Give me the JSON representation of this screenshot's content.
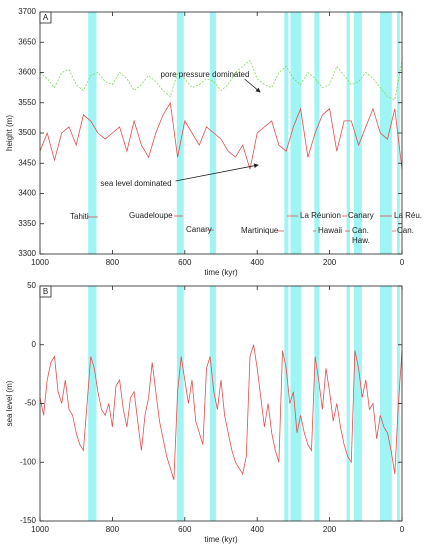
{
  "chart_data": [
    {
      "type": "line",
      "panel": "A",
      "xlabel": "time (kyr)",
      "ylabel": "height (m)",
      "xlim": [
        1000,
        0
      ],
      "xticks": [
        1000,
        800,
        600,
        400,
        200,
        0
      ],
      "ylim": [
        3300,
        3700
      ],
      "yticks": [
        3300,
        3350,
        3400,
        3450,
        3500,
        3550,
        3600,
        3650,
        3700
      ],
      "bands": [
        [
          867,
          844
        ],
        [
          622,
          603
        ],
        [
          531,
          514
        ],
        [
          325,
          314
        ],
        [
          308,
          278
        ],
        [
          242,
          228
        ],
        [
          153,
          144
        ],
        [
          133,
          111
        ],
        [
          61,
          28
        ],
        [
          14,
          6
        ]
      ],
      "band_color": "#7ff0f0",
      "annotations": [
        "pore pressure dominated",
        "sea level dominated"
      ],
      "site_labels": [
        "Tahiti",
        "Guadeloupe",
        "Canary",
        "Martinique",
        "La Réunion",
        "Hawaii",
        "Canary",
        "Can.",
        "Haw.",
        "La Réu.",
        "Can."
      ],
      "x": [
        1000,
        980,
        960,
        940,
        920,
        900,
        880,
        860,
        840,
        820,
        800,
        780,
        760,
        740,
        720,
        700,
        680,
        660,
        640,
        620,
        600,
        580,
        560,
        540,
        520,
        500,
        480,
        460,
        440,
        420,
        400,
        380,
        360,
        340,
        320,
        300,
        280,
        260,
        240,
        220,
        200,
        180,
        160,
        140,
        120,
        100,
        80,
        60,
        40,
        20,
        0
      ],
      "series": [
        {
          "color": "#7ed957",
          "dashed": true,
          "values": [
            3600,
            3590,
            3575,
            3600,
            3605,
            3580,
            3570,
            3595,
            3600,
            3585,
            3580,
            3600,
            3590,
            3570,
            3580,
            3595,
            3585,
            3570,
            3560,
            3600,
            3590,
            3575,
            3580,
            3590,
            3585,
            3570,
            3580,
            3600,
            3610,
            3620,
            3590,
            3580,
            3575,
            3600,
            3610,
            3590,
            3580,
            3600,
            3590,
            3575,
            3580,
            3610,
            3595,
            3580,
            3585,
            3600,
            3590,
            3575,
            3560,
            3555,
            3620
          ]
        },
        {
          "color": "#e05050",
          "dashed": false,
          "values": [
            3470,
            3500,
            3455,
            3500,
            3510,
            3480,
            3530,
            3520,
            3500,
            3490,
            3500,
            3510,
            3470,
            3520,
            3480,
            3460,
            3500,
            3530,
            3550,
            3460,
            3520,
            3500,
            3480,
            3510,
            3500,
            3490,
            3470,
            3460,
            3480,
            3440,
            3500,
            3510,
            3520,
            3480,
            3470,
            3510,
            3540,
            3460,
            3500,
            3530,
            3540,
            3470,
            3520,
            3520,
            3480,
            3510,
            3540,
            3500,
            3490,
            3540,
            3440
          ]
        }
      ]
    },
    {
      "type": "line",
      "panel": "B",
      "xlabel": "time (kyr)",
      "ylabel": "sea level (m)",
      "xlim": [
        1000,
        0
      ],
      "xticks": [
        1000,
        800,
        600,
        400,
        200,
        0
      ],
      "ylim": [
        -150,
        50
      ],
      "yticks": [
        -150,
        -100,
        -50,
        0,
        50
      ],
      "bands": [
        [
          867,
          844
        ],
        [
          622,
          603
        ],
        [
          531,
          514
        ],
        [
          325,
          314
        ],
        [
          308,
          278
        ],
        [
          242,
          228
        ],
        [
          153,
          144
        ],
        [
          133,
          111
        ],
        [
          61,
          28
        ],
        [
          14,
          6
        ]
      ],
      "band_color": "#7ff0f0",
      "x": [
        1000,
        990,
        980,
        970,
        960,
        950,
        940,
        930,
        920,
        910,
        900,
        890,
        880,
        870,
        860,
        850,
        840,
        830,
        820,
        810,
        800,
        790,
        780,
        770,
        760,
        750,
        740,
        730,
        720,
        710,
        700,
        690,
        680,
        670,
        660,
        650,
        640,
        630,
        620,
        610,
        600,
        590,
        580,
        570,
        560,
        550,
        540,
        530,
        520,
        510,
        500,
        490,
        480,
        470,
        460,
        450,
        440,
        430,
        420,
        410,
        400,
        390,
        380,
        370,
        360,
        350,
        340,
        330,
        320,
        310,
        300,
        290,
        280,
        270,
        260,
        250,
        240,
        230,
        220,
        210,
        200,
        190,
        180,
        170,
        160,
        150,
        140,
        130,
        120,
        110,
        100,
        90,
        80,
        70,
        60,
        50,
        40,
        30,
        20,
        10,
        0
      ],
      "series": [
        {
          "color": "#e05050",
          "dashed": false,
          "values": [
            -45,
            -60,
            -30,
            -15,
            -10,
            -40,
            -50,
            -30,
            -55,
            -60,
            -75,
            -85,
            -90,
            -50,
            -10,
            -20,
            -40,
            -55,
            -60,
            -50,
            -70,
            -35,
            -30,
            -55,
            -70,
            -45,
            -40,
            -65,
            -90,
            -60,
            -45,
            -15,
            -40,
            -65,
            -80,
            -95,
            -105,
            -115,
            -40,
            -10,
            -30,
            -50,
            -30,
            -65,
            -75,
            -85,
            -20,
            -10,
            -40,
            -55,
            -30,
            -60,
            -75,
            -90,
            -100,
            -105,
            -110,
            -95,
            -10,
            0,
            -20,
            -45,
            -70,
            -50,
            -75,
            -90,
            -100,
            -5,
            -20,
            -50,
            -40,
            -75,
            -60,
            -75,
            -85,
            -90,
            -10,
            -30,
            -55,
            -20,
            -40,
            -65,
            -50,
            -70,
            -85,
            -95,
            -100,
            -5,
            -20,
            -45,
            -30,
            -55,
            -50,
            -80,
            -60,
            -70,
            -75,
            -90,
            -110,
            -50,
            -5
          ]
        }
      ]
    }
  ]
}
